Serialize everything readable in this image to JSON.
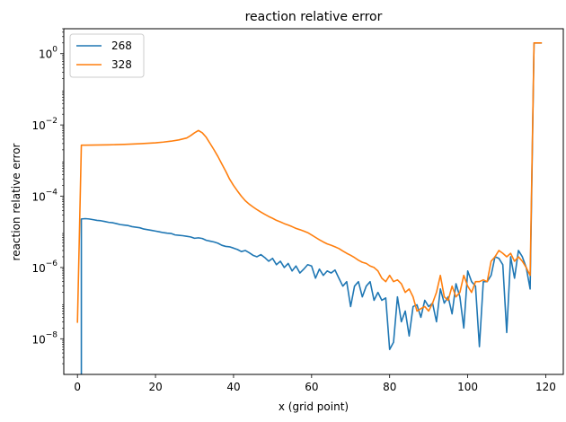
{
  "chart_data": {
    "type": "line",
    "title": "reaction relative error",
    "xlabel": "x (grid point)",
    "ylabel": "reaction relative error",
    "yscale": "log",
    "xlim": [
      -3.5,
      124.5
    ],
    "ylim": [
      1e-09,
      5
    ],
    "xticks": [
      0,
      20,
      40,
      60,
      80,
      100,
      120
    ],
    "yticks": [
      {
        "value": 1e-08,
        "base": "10",
        "exp": "−8"
      },
      {
        "value": 1e-06,
        "base": "10",
        "exp": "−6"
      },
      {
        "value": 0.0001,
        "base": "10",
        "exp": "−4"
      },
      {
        "value": 0.01,
        "base": "10",
        "exp": "−2"
      },
      {
        "value": 1,
        "base": "10",
        "exp": "0"
      }
    ],
    "legend_position": "upper left",
    "grid": false,
    "series": [
      {
        "name": "268",
        "color": "#1f77b4",
        "points": [
          [
            1,
            8e-10
          ],
          [
            1,
            2.3e-05
          ],
          [
            2,
            2.35e-05
          ],
          [
            3,
            2.3e-05
          ],
          [
            4,
            2.2e-05
          ],
          [
            5,
            2.1e-05
          ],
          [
            6,
            2.05e-05
          ],
          [
            7,
            1.95e-05
          ],
          [
            8,
            1.85e-05
          ],
          [
            9,
            1.8e-05
          ],
          [
            10,
            1.7e-05
          ],
          [
            11,
            1.6e-05
          ],
          [
            12,
            1.55e-05
          ],
          [
            13,
            1.5e-05
          ],
          [
            14,
            1.4e-05
          ],
          [
            15,
            1.35e-05
          ],
          [
            16,
            1.3e-05
          ],
          [
            17,
            1.2e-05
          ],
          [
            18,
            1.15e-05
          ],
          [
            19,
            1.1e-05
          ],
          [
            20,
            1.05e-05
          ],
          [
            21,
            1e-05
          ],
          [
            22,
            9.5e-06
          ],
          [
            23,
            9.2e-06
          ],
          [
            24,
            9e-06
          ],
          [
            25,
            8.2e-06
          ],
          [
            26,
            8e-06
          ],
          [
            27,
            7.8e-06
          ],
          [
            28,
            7.5e-06
          ],
          [
            29,
            7.2e-06
          ],
          [
            30,
            6.6e-06
          ],
          [
            31,
            6.8e-06
          ],
          [
            32,
            6.5e-06
          ],
          [
            33,
            5.8e-06
          ],
          [
            34,
            5.5e-06
          ],
          [
            35,
            5.2e-06
          ],
          [
            36,
            4.8e-06
          ],
          [
            37,
            4.2e-06
          ],
          [
            38,
            3.9e-06
          ],
          [
            39,
            3.8e-06
          ],
          [
            40,
            3.5e-06
          ],
          [
            41,
            3.2e-06
          ],
          [
            42,
            2.8e-06
          ],
          [
            43,
            3e-06
          ],
          [
            44,
            2.6e-06
          ],
          [
            45,
            2.2e-06
          ],
          [
            46,
            2e-06
          ],
          [
            47,
            2.3e-06
          ],
          [
            48,
            1.9e-06
          ],
          [
            49,
            1.5e-06
          ],
          [
            50,
            1.8e-06
          ],
          [
            51,
            1.2e-06
          ],
          [
            52,
            1.5e-06
          ],
          [
            53,
            1e-06
          ],
          [
            54,
            1.3e-06
          ],
          [
            55,
            8e-07
          ],
          [
            56,
            1.1e-06
          ],
          [
            57,
            7e-07
          ],
          [
            58,
            9e-07
          ],
          [
            59,
            1.2e-06
          ],
          [
            60,
            1.1e-06
          ],
          [
            61,
            5e-07
          ],
          [
            62,
            9e-07
          ],
          [
            63,
            6e-07
          ],
          [
            64,
            8e-07
          ],
          [
            65,
            7e-07
          ],
          [
            66,
            8.5e-07
          ],
          [
            67,
            5e-07
          ],
          [
            68,
            3e-07
          ],
          [
            69,
            4e-07
          ],
          [
            70,
            8e-08
          ],
          [
            71,
            3e-07
          ],
          [
            72,
            4e-07
          ],
          [
            73,
            1.5e-07
          ],
          [
            74,
            3e-07
          ],
          [
            75,
            4e-07
          ],
          [
            76,
            1.2e-07
          ],
          [
            77,
            2e-07
          ],
          [
            78,
            1.2e-07
          ],
          [
            79,
            1.4e-07
          ],
          [
            80,
            5e-09
          ],
          [
            81,
            8e-09
          ],
          [
            82,
            1.5e-07
          ],
          [
            83,
            3e-08
          ],
          [
            84,
            6e-08
          ],
          [
            85,
            1.2e-08
          ],
          [
            86,
            8e-08
          ],
          [
            87,
            9e-08
          ],
          [
            88,
            4e-08
          ],
          [
            89,
            1.2e-07
          ],
          [
            90,
            8e-08
          ],
          [
            91,
            1e-07
          ],
          [
            92,
            3e-08
          ],
          [
            93,
            2.5e-07
          ],
          [
            94,
            1e-07
          ],
          [
            95,
            1.5e-07
          ],
          [
            96,
            5e-08
          ],
          [
            97,
            3.5e-07
          ],
          [
            98,
            1.5e-07
          ],
          [
            99,
            2e-08
          ],
          [
            100,
            8e-07
          ],
          [
            101,
            4e-07
          ],
          [
            102,
            3e-07
          ],
          [
            103,
            6e-09
          ],
          [
            104,
            4e-07
          ],
          [
            105,
            4e-07
          ],
          [
            106,
            6e-07
          ],
          [
            107,
            2e-06
          ],
          [
            108,
            1.8e-06
          ],
          [
            109,
            1.2e-06
          ],
          [
            110,
            1.5e-08
          ],
          [
            111,
            2e-06
          ],
          [
            112,
            5e-07
          ],
          [
            113,
            3e-06
          ],
          [
            114,
            2e-06
          ],
          [
            115,
            1e-06
          ],
          [
            116,
            2.5e-07
          ],
          [
            117,
            2.0
          ],
          [
            118,
            2.0
          ],
          [
            119,
            2.0
          ]
        ]
      },
      {
        "name": "328",
        "color": "#ff7f0e",
        "points": [
          [
            0,
            2.8e-08
          ],
          [
            1,
            0.0027
          ],
          [
            2,
            0.0027
          ],
          [
            4,
            0.00272
          ],
          [
            6,
            0.00274
          ],
          [
            8,
            0.00276
          ],
          [
            10,
            0.0028
          ],
          [
            12,
            0.00285
          ],
          [
            14,
            0.0029
          ],
          [
            16,
            0.00297
          ],
          [
            18,
            0.00305
          ],
          [
            20,
            0.00315
          ],
          [
            22,
            0.0033
          ],
          [
            24,
            0.0035
          ],
          [
            26,
            0.0038
          ],
          [
            28,
            0.0043
          ],
          [
            29,
            0.005
          ],
          [
            30,
            0.006
          ],
          [
            31,
            0.007
          ],
          [
            32,
            0.006
          ],
          [
            33,
            0.0045
          ],
          [
            34,
            0.003
          ],
          [
            35,
            0.002
          ],
          [
            36,
            0.0013
          ],
          [
            37,
            0.0008
          ],
          [
            38,
            0.0005
          ],
          [
            39,
            0.0003
          ],
          [
            40,
            0.0002
          ],
          [
            41,
            0.00014
          ],
          [
            42,
            0.0001
          ],
          [
            43,
            7.5e-05
          ],
          [
            44,
            6e-05
          ],
          [
            45,
            5e-05
          ],
          [
            46,
            4.2e-05
          ],
          [
            47,
            3.6e-05
          ],
          [
            48,
            3.1e-05
          ],
          [
            49,
            2.7e-05
          ],
          [
            50,
            2.4e-05
          ],
          [
            51,
            2.1e-05
          ],
          [
            52,
            1.9e-05
          ],
          [
            53,
            1.7e-05
          ],
          [
            54,
            1.55e-05
          ],
          [
            55,
            1.4e-05
          ],
          [
            56,
            1.25e-05
          ],
          [
            57,
            1.15e-05
          ],
          [
            58,
            1.05e-05
          ],
          [
            59,
            9.5e-06
          ],
          [
            60,
            8.2e-06
          ],
          [
            61,
            7e-06
          ],
          [
            62,
            6e-06
          ],
          [
            63,
            5.2e-06
          ],
          [
            64,
            4.6e-06
          ],
          [
            65,
            4.2e-06
          ],
          [
            66,
            3.8e-06
          ],
          [
            67,
            3.4e-06
          ],
          [
            68,
            2.9e-06
          ],
          [
            69,
            2.5e-06
          ],
          [
            70,
            2.2e-06
          ],
          [
            71,
            1.9e-06
          ],
          [
            72,
            1.6e-06
          ],
          [
            73,
            1.4e-06
          ],
          [
            74,
            1.3e-06
          ],
          [
            75,
            1.1e-06
          ],
          [
            76,
            1e-06
          ],
          [
            77,
            8e-07
          ],
          [
            78,
            5e-07
          ],
          [
            79,
            4e-07
          ],
          [
            80,
            6e-07
          ],
          [
            81,
            4e-07
          ],
          [
            82,
            4.5e-07
          ],
          [
            83,
            3.5e-07
          ],
          [
            84,
            2e-07
          ],
          [
            85,
            2.5e-07
          ],
          [
            86,
            1.5e-07
          ],
          [
            87,
            6e-08
          ],
          [
            88,
            7e-08
          ],
          [
            89,
            8e-08
          ],
          [
            90,
            6e-08
          ],
          [
            91,
            1e-07
          ],
          [
            92,
            2e-07
          ],
          [
            93,
            6e-07
          ],
          [
            94,
            1.5e-07
          ],
          [
            95,
            1.2e-07
          ],
          [
            96,
            3e-07
          ],
          [
            97,
            1.5e-07
          ],
          [
            98,
            2e-07
          ],
          [
            99,
            6e-07
          ],
          [
            100,
            3e-07
          ],
          [
            101,
            2e-07
          ],
          [
            102,
            4e-07
          ],
          [
            103,
            4e-07
          ],
          [
            104,
            4.5e-07
          ],
          [
            105,
            4e-07
          ],
          [
            106,
            1.5e-06
          ],
          [
            107,
            2e-06
          ],
          [
            108,
            3e-06
          ],
          [
            109,
            2.5e-06
          ],
          [
            110,
            2e-06
          ],
          [
            111,
            2.5e-06
          ],
          [
            112,
            1.5e-06
          ],
          [
            113,
            2e-06
          ],
          [
            114,
            1.5e-06
          ],
          [
            115,
            1e-06
          ],
          [
            116,
            6e-07
          ],
          [
            117,
            2.0
          ],
          [
            118,
            2.0
          ],
          [
            119,
            2.0
          ]
        ]
      }
    ]
  }
}
